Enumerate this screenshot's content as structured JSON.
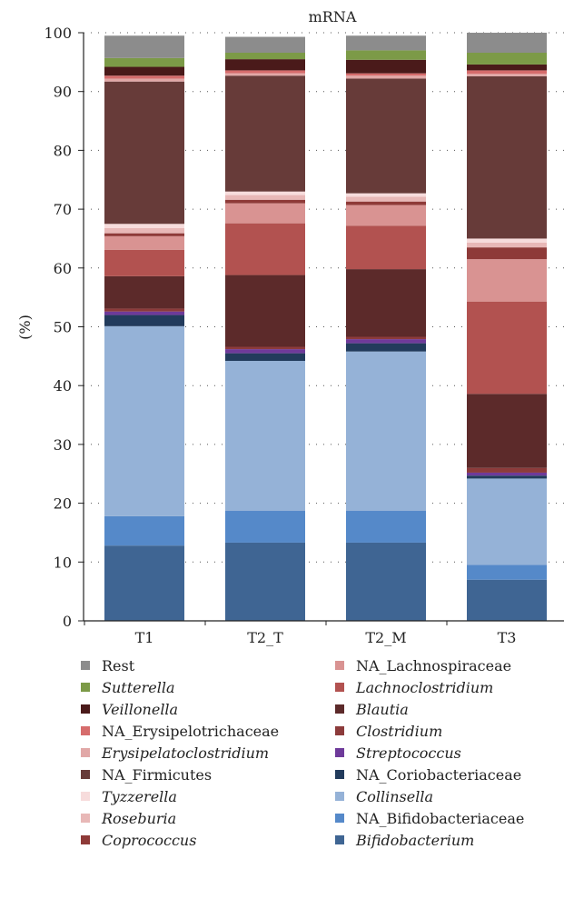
{
  "chart_data": {
    "type": "bar",
    "stacked": true,
    "title": "mRNA",
    "xlabel": "",
    "ylabel": "(%)",
    "ylim": [
      0,
      100
    ],
    "yticks": [
      0,
      10,
      20,
      30,
      40,
      50,
      60,
      70,
      80,
      90,
      100
    ],
    "grid": "dotted horizontal",
    "legend_position": "bottom",
    "categories": [
      "T1",
      "T2_T",
      "T2_M",
      "T3"
    ],
    "series": [
      {
        "name": "Bifidobacterium",
        "italic": true,
        "color": "#3f6593",
        "values": [
          12.8,
          13.3,
          13.3,
          7.0
        ]
      },
      {
        "name": "NA_Bifidobacteriaceae",
        "italic": false,
        "color": "#5589c9",
        "values": [
          5.0,
          5.4,
          5.4,
          2.5
        ]
      },
      {
        "name": "Collinsella",
        "italic": true,
        "color": "#95b2d7",
        "values": [
          32.3,
          25.5,
          27.1,
          14.7
        ]
      },
      {
        "name": "NA_Coriobacteriaceae",
        "italic": false,
        "color": "#223b5c",
        "values": [
          1.9,
          1.3,
          1.4,
          0.5
        ]
      },
      {
        "name": "Streptococcus",
        "italic": true,
        "color": "#6e3a9a",
        "values": [
          0.6,
          0.7,
          0.7,
          0.5
        ]
      },
      {
        "name": "Clostridium",
        "italic": true,
        "color": "#8c3b3b",
        "values": [
          0.5,
          0.4,
          0.4,
          0.8
        ]
      },
      {
        "name": "Blautia",
        "italic": true,
        "color": "#5c2a2a",
        "values": [
          5.5,
          12.2,
          11.5,
          12.6
        ]
      },
      {
        "name": "Lachnoclostridium",
        "italic": true,
        "color": "#b25250",
        "values": [
          4.5,
          8.8,
          7.4,
          15.7
        ]
      },
      {
        "name": "NA_Lachnospiraceae",
        "italic": false,
        "color": "#d99392",
        "values": [
          2.3,
          3.4,
          3.5,
          7.2
        ]
      },
      {
        "name": "Coprococcus",
        "italic": true,
        "color": "#8e3a38",
        "values": [
          0.5,
          0.6,
          0.6,
          2.0
        ]
      },
      {
        "name": "Roseburia",
        "italic": true,
        "color": "#e8b8b7",
        "values": [
          0.9,
          0.8,
          0.8,
          0.8
        ]
      },
      {
        "name": "Tyzzerella",
        "italic": true,
        "color": "#f7dcdc",
        "values": [
          0.7,
          0.6,
          0.6,
          0.7
        ]
      },
      {
        "name": "NA_Firmicutes",
        "italic": false,
        "color": "#673b39",
        "values": [
          24.2,
          19.7,
          19.5,
          27.6
        ]
      },
      {
        "name": "Erysipelatoclostridium",
        "italic": true,
        "color": "#e1a8a7",
        "values": [
          0.5,
          0.4,
          0.5,
          0.4
        ]
      },
      {
        "name": "NA_Erysipelotrichaceae",
        "italic": false,
        "color": "#d66c6c",
        "values": [
          0.5,
          0.5,
          0.4,
          0.6
        ]
      },
      {
        "name": "Veillonella",
        "italic": true,
        "color": "#4a1a1a",
        "values": [
          1.5,
          1.9,
          2.3,
          1.0
        ]
      },
      {
        "name": "Sutterella",
        "italic": true,
        "color": "#7c9a47",
        "values": [
          1.5,
          1.1,
          1.6,
          2.0
        ]
      },
      {
        "name": "Rest",
        "italic": false,
        "color": "#8c8c8c",
        "values": [
          3.8,
          2.7,
          2.5,
          3.4
        ]
      }
    ],
    "legend_order": [
      "Rest",
      "NA_Lachnospiraceae",
      "Sutterella",
      "Lachnoclostridium",
      "Veillonella",
      "Blautia",
      "NA_Erysipelotrichaceae",
      "Clostridium",
      "Erysipelatoclostridium",
      "Streptococcus",
      "NA_Firmicutes",
      "NA_Coriobacteriaceae",
      "Tyzzerella",
      "Collinsella",
      "Roseburia",
      "NA_Bifidobacteriaceae",
      "Coprococcus",
      "Bifidobacterium"
    ]
  }
}
